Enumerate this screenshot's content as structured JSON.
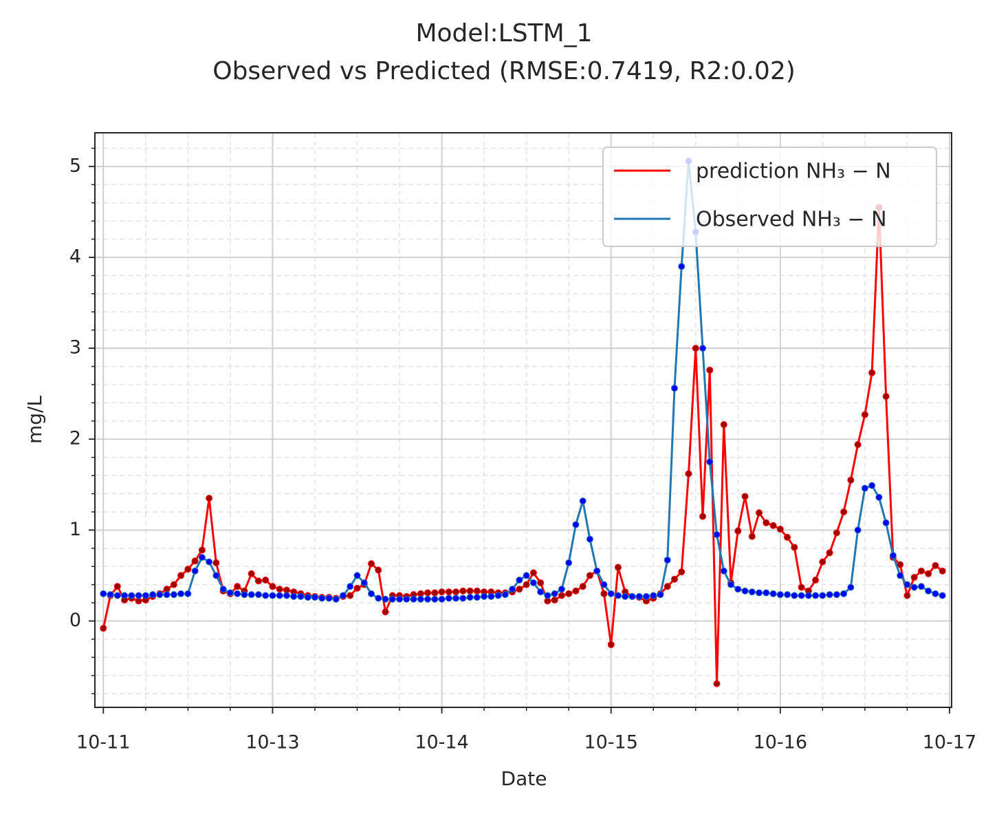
{
  "chart_data": {
    "type": "line",
    "title": "Model:LSTM_1",
    "subtitle": "Observed vs Predicted (RMSE:0.7419, R2:0.02)",
    "x_label": "Date",
    "y_label": "mg/L",
    "x": [
      0,
      1,
      2,
      3,
      4,
      5,
      6,
      7,
      8,
      9,
      10,
      11,
      12,
      13,
      14,
      15,
      16,
      17,
      18,
      19,
      20,
      21,
      22,
      23,
      24,
      25,
      26,
      27,
      28,
      29,
      30,
      31,
      32,
      33,
      34,
      35,
      36,
      37,
      38,
      39,
      40,
      41,
      42,
      43,
      44,
      45,
      46,
      47,
      48,
      49,
      50,
      51,
      52,
      53,
      54,
      55,
      56,
      57,
      58,
      59,
      60,
      61,
      62,
      63,
      64,
      65,
      66,
      67,
      68,
      69,
      70,
      71,
      72,
      73,
      74,
      75,
      76,
      77,
      78,
      79,
      80,
      81,
      82,
      83,
      84,
      85,
      86,
      87,
      88,
      89,
      90,
      91,
      92,
      93,
      94,
      95,
      96,
      97,
      98,
      99,
      100,
      101,
      102,
      103,
      104,
      105,
      106,
      107,
      108,
      109,
      110,
      111,
      112,
      113,
      114,
      115,
      116,
      117,
      118,
      119
    ],
    "series": [
      {
        "name": "prediction NH₃ − N",
        "color": "#ff0000",
        "marker_color": "#a00000",
        "values": [
          -0.08,
          0.28,
          0.38,
          0.23,
          0.25,
          0.22,
          0.23,
          0.27,
          0.3,
          0.35,
          0.4,
          0.5,
          0.57,
          0.66,
          0.78,
          1.35,
          0.64,
          0.33,
          0.3,
          0.38,
          0.33,
          0.52,
          0.44,
          0.45,
          0.38,
          0.35,
          0.34,
          0.32,
          0.3,
          0.28,
          0.27,
          0.26,
          0.26,
          0.25,
          0.27,
          0.28,
          0.36,
          0.4,
          0.63,
          0.56,
          0.1,
          0.28,
          0.28,
          0.27,
          0.29,
          0.3,
          0.31,
          0.31,
          0.32,
          0.32,
          0.32,
          0.33,
          0.33,
          0.33,
          0.32,
          0.32,
          0.31,
          0.31,
          0.32,
          0.35,
          0.4,
          0.53,
          0.42,
          0.22,
          0.23,
          0.28,
          0.3,
          0.33,
          0.38,
          0.5,
          0.55,
          0.3,
          -0.26,
          0.59,
          0.32,
          0.27,
          0.26,
          0.22,
          0.25,
          0.3,
          0.38,
          0.46,
          0.54,
          1.62,
          3.0,
          1.15,
          2.76,
          -0.69,
          2.16,
          0.42,
          0.99,
          1.37,
          0.93,
          1.19,
          1.08,
          1.05,
          1.01,
          0.92,
          0.81,
          0.37,
          0.33,
          0.45,
          0.65,
          0.75,
          0.97,
          1.2,
          1.55,
          1.94,
          2.27,
          2.73,
          4.55,
          2.47,
          0.7,
          0.62,
          0.28,
          0.48,
          0.55,
          0.52,
          0.61,
          0.55
        ]
      },
      {
        "name": "Observed NH₃ − N",
        "color": "#1f77b4",
        "marker_color": "#0000ff",
        "values": [
          0.3,
          0.29,
          0.28,
          0.28,
          0.28,
          0.28,
          0.28,
          0.29,
          0.29,
          0.29,
          0.29,
          0.3,
          0.3,
          0.55,
          0.7,
          0.65,
          0.5,
          0.35,
          0.31,
          0.3,
          0.29,
          0.29,
          0.29,
          0.28,
          0.28,
          0.28,
          0.28,
          0.27,
          0.27,
          0.26,
          0.26,
          0.25,
          0.25,
          0.24,
          0.28,
          0.38,
          0.5,
          0.42,
          0.3,
          0.25,
          0.24,
          0.24,
          0.24,
          0.24,
          0.24,
          0.24,
          0.24,
          0.24,
          0.24,
          0.25,
          0.25,
          0.25,
          0.26,
          0.26,
          0.27,
          0.27,
          0.28,
          0.29,
          0.35,
          0.45,
          0.5,
          0.42,
          0.32,
          0.28,
          0.3,
          0.35,
          0.64,
          1.06,
          1.32,
          0.9,
          0.55,
          0.4,
          0.3,
          0.28,
          0.27,
          0.27,
          0.27,
          0.27,
          0.28,
          0.29,
          0.67,
          2.56,
          3.9,
          5.06,
          4.28,
          3.0,
          1.75,
          0.95,
          0.55,
          0.4,
          0.35,
          0.33,
          0.32,
          0.31,
          0.31,
          0.3,
          0.29,
          0.29,
          0.28,
          0.28,
          0.28,
          0.28,
          0.28,
          0.29,
          0.29,
          0.3,
          0.37,
          1.0,
          1.46,
          1.49,
          1.36,
          1.08,
          0.72,
          0.5,
          0.4,
          0.37,
          0.38,
          0.33,
          0.3,
          0.28
        ]
      }
    ],
    "xlim": [
      -1.2,
      120.3
    ],
    "xticks": [
      {
        "value": 0,
        "label": "10-11"
      },
      {
        "value": 24,
        "label": "10-13"
      },
      {
        "value": 48,
        "label": "10-14"
      },
      {
        "value": 72,
        "label": "10-15"
      },
      {
        "value": 96,
        "label": "10-16"
      },
      {
        "value": 120,
        "label": "10-17"
      }
    ],
    "ylim": [
      -0.95,
      5.37
    ],
    "yticks": [
      0,
      1,
      2,
      3,
      4,
      5
    ],
    "grid": true,
    "minor_grid": true,
    "legend": "upper right"
  }
}
